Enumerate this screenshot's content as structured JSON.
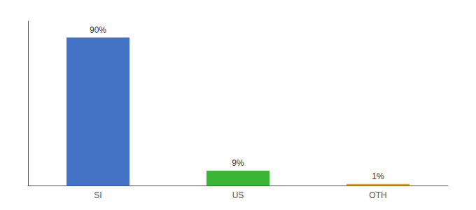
{
  "chart_data": {
    "type": "bar",
    "categories": [
      "SI",
      "US",
      "OTH"
    ],
    "values": [
      90,
      9,
      1
    ],
    "value_labels": [
      "90%",
      "9%",
      "1%"
    ],
    "data_labels": true,
    "colors": [
      "#4472c4",
      "#3ab534",
      "#f0a500"
    ],
    "ylim": [
      0,
      100
    ],
    "tick_labels": "x",
    "grid": false
  }
}
